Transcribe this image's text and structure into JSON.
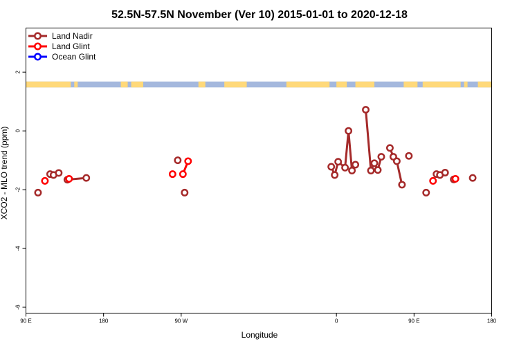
{
  "chart_data": {
    "type": "line",
    "title": "52.5N-57.5N November (Ver 10)   2015-01-01 to 2020-12-18",
    "xlabel": "Longitude",
    "ylabel": "XCO2 - MLO trend (ppm)",
    "xlim": [
      -90,
      180
    ],
    "ylim": [
      -6.2,
      3.5
    ],
    "grid": false,
    "legend_position": "top-left",
    "x_axis_ticks": [
      {
        "value": -90,
        "label": "90 E"
      },
      {
        "value": -45,
        "label": "180"
      },
      {
        "value": 0,
        "label": "90 W"
      },
      {
        "value": 90,
        "label": "0"
      },
      {
        "value": 135,
        "label": "90 E"
      },
      {
        "value": 180,
        "label": "180"
      }
    ],
    "y_axis_ticks": [
      {
        "value": 2,
        "label": "2"
      },
      {
        "value": 0,
        "label": "0"
      },
      {
        "value": -2,
        "label": "-2"
      },
      {
        "value": -4,
        "label": "-4"
      },
      {
        "value": -6,
        "label": "-6"
      }
    ],
    "colors": {
      "land_nadir": "#a52a2a",
      "land_glint": "#ff0000",
      "ocean_glint": "#0000ff",
      "land_strip": "#ffd97a",
      "ocean_strip": "#a4b8dd"
    },
    "series": [
      {
        "name": "Land Nadir",
        "color": "#a52a2a",
        "segments": [
          [
            [
              -83,
              -2.1
            ]
          ],
          [
            [
              -76,
              -1.47
            ],
            [
              -74,
              -1.5
            ],
            [
              -71,
              -1.43
            ]
          ],
          [
            [
              -66,
              -1.66
            ],
            [
              -55,
              -1.6
            ]
          ],
          [
            [
              -2,
              -1.0
            ]
          ],
          [
            [
              2,
              -2.1
            ]
          ],
          [
            [
              87,
              -1.22
            ],
            [
              89,
              -1.5
            ],
            [
              91,
              -1.05
            ],
            [
              95,
              -1.25
            ],
            [
              97,
              0.0
            ],
            [
              99,
              -1.35
            ],
            [
              101,
              -1.15
            ]
          ],
          [
            [
              107,
              0.72
            ],
            [
              110,
              -1.35
            ],
            [
              112,
              -1.1
            ],
            [
              114,
              -1.33
            ],
            [
              116,
              -0.88
            ]
          ],
          [
            [
              121,
              -0.58
            ],
            [
              123,
              -0.88
            ],
            [
              125,
              -1.03
            ],
            [
              128,
              -1.83
            ]
          ],
          [
            [
              132,
              -0.85
            ]
          ],
          [
            [
              142,
              -2.1
            ]
          ],
          [
            [
              148,
              -1.47
            ],
            [
              150,
              -1.5
            ],
            [
              153,
              -1.42
            ]
          ],
          [
            [
              158,
              -1.65
            ]
          ],
          [
            [
              169,
              -1.6
            ]
          ]
        ]
      },
      {
        "name": "Land Glint",
        "color": "#ff0000",
        "segments": [
          [
            [
              -79,
              -1.7
            ]
          ],
          [
            [
              -65,
              -1.63
            ]
          ],
          [
            [
              -5,
              -1.47
            ]
          ],
          [
            [
              1,
              -1.47
            ],
            [
              4,
              -1.03
            ]
          ],
          [
            [
              146,
              -1.7
            ]
          ],
          [
            [
              159,
              -1.63
            ]
          ]
        ]
      },
      {
        "name": "Ocean Glint",
        "color": "#0000ff",
        "segments": []
      }
    ],
    "land_mask_strip": {
      "y_range": [
        1.48,
        1.68
      ],
      "land_longitude_ranges": [
        [
          -90,
          -64
        ],
        [
          -62,
          -60
        ],
        [
          -35,
          -31
        ],
        [
          -29,
          -22
        ],
        [
          10,
          14
        ],
        [
          25,
          38
        ],
        [
          61,
          86
        ],
        [
          90,
          96
        ],
        [
          101,
          112
        ],
        [
          129,
          137
        ],
        [
          140,
          162
        ],
        [
          164,
          166
        ],
        [
          172,
          180
        ]
      ]
    }
  }
}
